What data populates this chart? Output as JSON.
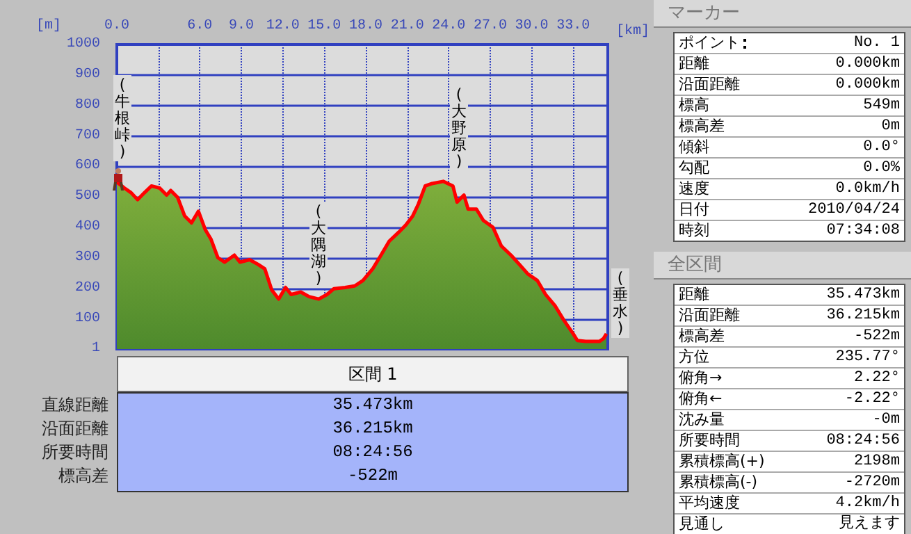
{
  "chart_data": [
    {
      "type": "area",
      "xlabel": "[km]",
      "ylabel": "[m]",
      "xlim": [
        0,
        35.5
      ],
      "ylim": [
        1,
        1000
      ],
      "xticks": [
        {
          "value": 0,
          "label": "0.0"
        },
        {
          "value": 3,
          "label": null
        },
        {
          "value": 6,
          "label": "6.0"
        },
        {
          "value": 9,
          "label": "9.0"
        },
        {
          "value": 12,
          "label": "12.0"
        },
        {
          "value": 15,
          "label": "15.0"
        },
        {
          "value": 18,
          "label": "18.0"
        },
        {
          "value": 21,
          "label": "21.0"
        },
        {
          "value": 24,
          "label": "24.0"
        },
        {
          "value": 27,
          "label": "27.0"
        },
        {
          "value": 30,
          "label": "30.0"
        },
        {
          "value": 33,
          "label": "33.0"
        }
      ],
      "yticks": [
        1,
        100,
        200,
        300,
        400,
        500,
        600,
        700,
        800,
        900,
        1000
      ],
      "grid": true,
      "marker": "none",
      "line_style": "solid",
      "x": [
        0,
        0.55,
        1.03,
        1.5,
        2.0,
        2.5,
        3.1,
        3.6,
        3.9,
        4.4,
        4.9,
        5.4,
        5.9,
        6.4,
        6.8,
        7.3,
        7.8,
        8.5,
        8.9,
        9.6,
        10.2,
        10.7,
        11.2,
        11.7,
        12.2,
        12.6,
        13.3,
        13.9,
        14.6,
        15.2,
        15.7,
        16.5,
        17.2,
        17.8,
        18.5,
        19.1,
        19.7,
        20.4,
        20.9,
        21.4,
        21.8,
        22.3,
        22.8,
        23.6,
        24.3,
        24.6,
        25.1,
        25.4,
        26.0,
        26.5,
        27.2,
        27.8,
        28.5,
        29.1,
        29.7,
        30.4,
        31.0,
        31.7,
        32.3,
        33.0,
        33.3,
        33.9,
        34.9,
        35.2,
        35.4
      ],
      "series": [
        {
          "color": "#ff0000",
          "values": [
            549,
            529,
            514,
            491,
            514,
            536,
            529,
            506,
            521,
            498,
            438,
            415,
            453,
            392,
            362,
            301,
            286,
            309,
            286,
            294,
            279,
            264,
            195,
            165,
            203,
            180,
            188,
            173,
            165,
            180,
            199,
            203,
            208,
            226,
            264,
            309,
            355,
            385,
            408,
            438,
            476,
            536,
            544,
            551,
            536,
            483,
            506,
            460,
            460,
            423,
            400,
            339,
            309,
            279,
            248,
            226,
            180,
            142,
            97,
            51,
            29,
            26,
            26,
            36,
            51
          ]
        }
      ],
      "annotations": [
        "(牛根峠)",
        "(大隅湖)",
        "(大野原)",
        "(垂水)"
      ]
    },
    {
      "type": "other",
      "title": "区間 1",
      "categories": [
        "直線距離",
        "沿面距離",
        "所要時間",
        "標高差"
      ],
      "value_labels": [
        "35.473km",
        "36.215km",
        "08:24:56",
        "-522m"
      ]
    },
    {
      "type": "other",
      "title": "マーカー",
      "categories": [
        "ポイント",
        "距離",
        "沿面距離",
        "標高",
        "標高差",
        "傾斜",
        "勾配",
        "速度",
        "日付",
        "時刻"
      ],
      "value_labels": [
        "No. 1",
        "0.000km",
        "0.000km",
        "549m",
        "0m",
        "0.0°",
        "0.0%",
        "0.0km/h",
        "2010/04/24",
        "07:34:08"
      ]
    },
    {
      "type": "other",
      "title": "全区間",
      "categories": [
        "距離",
        "沿面距離",
        "標高差",
        "方位",
        "俯角→",
        "俯角←",
        "沈み量",
        "所要時間",
        "累積標高(+)",
        "累積標高(-)",
        "平均速度",
        "見通し"
      ],
      "value_labels": [
        "35.473km",
        "36.215km",
        "-522m",
        "235.77°",
        "2.22°",
        "-2.22°",
        "-0m",
        "08:24:56",
        "2198m",
        "-2720m",
        "4.2km/h",
        "見えます"
      ]
    }
  ]
}
